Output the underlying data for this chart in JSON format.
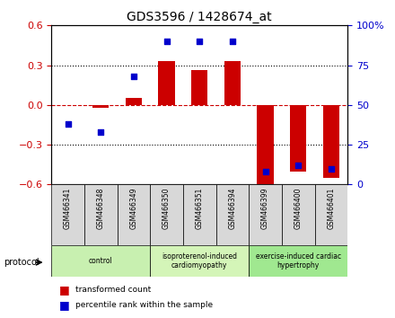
{
  "title": "GDS3596 / 1428674_at",
  "samples": [
    "GSM466341",
    "GSM466348",
    "GSM466349",
    "GSM466350",
    "GSM466351",
    "GSM466394",
    "GSM466399",
    "GSM466400",
    "GSM466401"
  ],
  "transformed_counts": [
    0.0,
    -0.02,
    0.05,
    0.33,
    0.26,
    0.33,
    -0.6,
    -0.5,
    -0.55
  ],
  "percentile_ranks": [
    38,
    33,
    68,
    90,
    90,
    90,
    8,
    12,
    10
  ],
  "groups": [
    {
      "label": "control",
      "start": 0,
      "end": 2,
      "color": "#c8f0b0"
    },
    {
      "label": "isoproterenol-induced\ncardiomyopathy",
      "start": 3,
      "end": 5,
      "color": "#d4f5b8"
    },
    {
      "label": "exercise-induced cardiac\nhypertrophy",
      "start": 6,
      "end": 8,
      "color": "#a0e890"
    }
  ],
  "bar_color": "#cc0000",
  "dot_color": "#0000cc",
  "ylim_left": [
    -0.6,
    0.6
  ],
  "ylim_right": [
    0,
    100
  ],
  "yticks_left": [
    -0.6,
    -0.3,
    0.0,
    0.3,
    0.6
  ],
  "yticks_right": [
    0,
    25,
    50,
    75,
    100
  ],
  "ytick_labels_right": [
    "0",
    "25",
    "50",
    "75",
    "100%"
  ],
  "background_color": "#ffffff",
  "bar_width": 0.5,
  "protocol_label": "protocol",
  "sample_box_color": "#d8d8d8",
  "legend": [
    {
      "color": "#cc0000",
      "label": "transformed count"
    },
    {
      "color": "#0000cc",
      "label": "percentile rank within the sample"
    }
  ]
}
